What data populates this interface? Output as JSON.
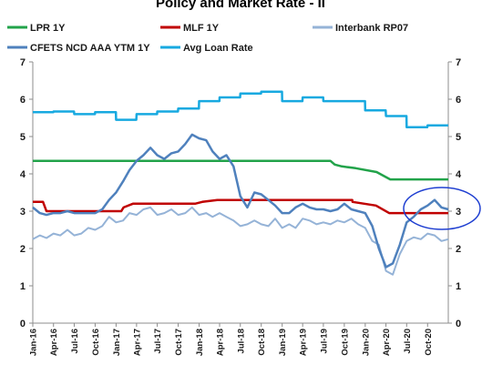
{
  "chart_data": {
    "type": "line",
    "title": "Policy and Market Rate - II",
    "ylim": [
      0,
      7
    ],
    "yticks": [
      0,
      1,
      2,
      3,
      4,
      5,
      6,
      7
    ],
    "x_tick_labels": [
      "Jan-16",
      "Apr-16",
      "Jul-16",
      "Oct-16",
      "Jan-17",
      "Apr-17",
      "Jul-17",
      "Oct-17",
      "Jan-18",
      "Apr-18",
      "Jul-18",
      "Oct-18",
      "Jan-19",
      "Apr-19",
      "Jul-19",
      "Oct-19",
      "Jan-20",
      "Apr-20",
      "Jul-20",
      "Oct-20"
    ],
    "legend_position": "top",
    "grid": false,
    "annotation": "blue ellipse circling the latest values (Oct-20 onward)",
    "series": [
      {
        "name": "LPR 1Y",
        "color": "#22a34a",
        "width": 2.5,
        "points": [
          [
            "2016-01-01",
            4.35
          ],
          [
            "2019-08-01",
            4.35
          ],
          [
            "2019-08-20",
            4.25
          ],
          [
            "2019-09-20",
            4.2
          ],
          [
            "2019-11-20",
            4.15
          ],
          [
            "2020-02-20",
            4.05
          ],
          [
            "2020-04-20",
            3.85
          ],
          [
            "2020-12-31",
            3.85
          ]
        ]
      },
      {
        "name": "MLF 1Y",
        "color": "#c00000",
        "width": 2.5,
        "points": [
          [
            "2016-01-01",
            3.25
          ],
          [
            "2016-02-15",
            3.25
          ],
          [
            "2016-03-01",
            3.0
          ],
          [
            "2017-01-24",
            3.0
          ],
          [
            "2017-02-03",
            3.1
          ],
          [
            "2017-03-16",
            3.2
          ],
          [
            "2017-12-14",
            3.2
          ],
          [
            "2018-01-15",
            3.25
          ],
          [
            "2018-03-22",
            3.3
          ],
          [
            "2019-11-05",
            3.3
          ],
          [
            "2019-11-06",
            3.25
          ],
          [
            "2020-02-17",
            3.15
          ],
          [
            "2020-04-15",
            2.95
          ],
          [
            "2020-12-31",
            2.95
          ]
        ]
      },
      {
        "name": "Interbank RP07",
        "color": "#95b3d7",
        "width": 2,
        "points": [
          [
            "2016-01-01",
            2.25
          ],
          [
            "2016-02-01",
            2.35
          ],
          [
            "2016-03-01",
            2.28
          ],
          [
            "2016-04-01",
            2.4
          ],
          [
            "2016-05-01",
            2.35
          ],
          [
            "2016-06-01",
            2.5
          ],
          [
            "2016-07-01",
            2.35
          ],
          [
            "2016-08-01",
            2.4
          ],
          [
            "2016-09-01",
            2.55
          ],
          [
            "2016-10-01",
            2.5
          ],
          [
            "2016-11-01",
            2.6
          ],
          [
            "2016-12-01",
            2.85
          ],
          [
            "2017-01-01",
            2.7
          ],
          [
            "2017-02-01",
            2.75
          ],
          [
            "2017-03-01",
            2.95
          ],
          [
            "2017-04-01",
            2.9
          ],
          [
            "2017-05-01",
            3.05
          ],
          [
            "2017-06-01",
            3.1
          ],
          [
            "2017-07-01",
            2.9
          ],
          [
            "2017-08-01",
            2.95
          ],
          [
            "2017-09-01",
            3.05
          ],
          [
            "2017-10-01",
            2.9
          ],
          [
            "2017-11-01",
            2.95
          ],
          [
            "2017-12-01",
            3.1
          ],
          [
            "2018-01-01",
            2.9
          ],
          [
            "2018-02-01",
            2.95
          ],
          [
            "2018-03-01",
            2.85
          ],
          [
            "2018-04-01",
            2.95
          ],
          [
            "2018-05-01",
            2.85
          ],
          [
            "2018-06-01",
            2.75
          ],
          [
            "2018-07-01",
            2.6
          ],
          [
            "2018-08-01",
            2.65
          ],
          [
            "2018-09-01",
            2.75
          ],
          [
            "2018-10-01",
            2.65
          ],
          [
            "2018-11-01",
            2.6
          ],
          [
            "2018-12-01",
            2.8
          ],
          [
            "2019-01-01",
            2.55
          ],
          [
            "2019-02-01",
            2.65
          ],
          [
            "2019-03-01",
            2.55
          ],
          [
            "2019-04-01",
            2.8
          ],
          [
            "2019-05-01",
            2.75
          ],
          [
            "2019-06-01",
            2.65
          ],
          [
            "2019-07-01",
            2.7
          ],
          [
            "2019-08-01",
            2.65
          ],
          [
            "2019-09-01",
            2.75
          ],
          [
            "2019-10-01",
            2.7
          ],
          [
            "2019-11-01",
            2.8
          ],
          [
            "2019-12-01",
            2.65
          ],
          [
            "2020-01-01",
            2.55
          ],
          [
            "2020-02-01",
            2.2
          ],
          [
            "2020-03-01",
            2.1
          ],
          [
            "2020-04-01",
            1.4
          ],
          [
            "2020-05-01",
            1.3
          ],
          [
            "2020-06-01",
            1.85
          ],
          [
            "2020-07-01",
            2.2
          ],
          [
            "2020-08-01",
            2.3
          ],
          [
            "2020-09-01",
            2.25
          ],
          [
            "2020-10-01",
            2.4
          ],
          [
            "2020-11-01",
            2.35
          ],
          [
            "2020-12-01",
            2.2
          ],
          [
            "2020-12-31",
            2.25
          ]
        ]
      },
      {
        "name": "CFETS NCD AAA YTM 1Y",
        "color": "#4f81bd",
        "width": 2.5,
        "points": [
          [
            "2016-01-01",
            3.1
          ],
          [
            "2016-02-01",
            2.95
          ],
          [
            "2016-03-01",
            2.9
          ],
          [
            "2016-04-01",
            2.95
          ],
          [
            "2016-05-01",
            2.95
          ],
          [
            "2016-06-01",
            3.0
          ],
          [
            "2016-07-01",
            2.95
          ],
          [
            "2016-08-01",
            2.95
          ],
          [
            "2016-09-01",
            2.95
          ],
          [
            "2016-10-01",
            2.95
          ],
          [
            "2016-11-01",
            3.05
          ],
          [
            "2016-12-01",
            3.3
          ],
          [
            "2017-01-01",
            3.5
          ],
          [
            "2017-02-01",
            3.8
          ],
          [
            "2017-03-01",
            4.1
          ],
          [
            "2017-04-01",
            4.35
          ],
          [
            "2017-05-01",
            4.5
          ],
          [
            "2017-06-01",
            4.7
          ],
          [
            "2017-07-01",
            4.5
          ],
          [
            "2017-08-01",
            4.4
          ],
          [
            "2017-09-01",
            4.55
          ],
          [
            "2017-10-01",
            4.6
          ],
          [
            "2017-11-01",
            4.8
          ],
          [
            "2017-12-01",
            5.05
          ],
          [
            "2018-01-01",
            4.95
          ],
          [
            "2018-02-01",
            4.9
          ],
          [
            "2018-03-01",
            4.6
          ],
          [
            "2018-04-01",
            4.4
          ],
          [
            "2018-05-01",
            4.5
          ],
          [
            "2018-06-01",
            4.2
          ],
          [
            "2018-07-01",
            3.4
          ],
          [
            "2018-08-01",
            3.1
          ],
          [
            "2018-09-01",
            3.5
          ],
          [
            "2018-10-01",
            3.45
          ],
          [
            "2018-11-01",
            3.3
          ],
          [
            "2018-12-01",
            3.15
          ],
          [
            "2019-01-01",
            2.95
          ],
          [
            "2019-02-01",
            2.95
          ],
          [
            "2019-03-01",
            3.1
          ],
          [
            "2019-04-01",
            3.2
          ],
          [
            "2019-05-01",
            3.1
          ],
          [
            "2019-06-01",
            3.05
          ],
          [
            "2019-07-01",
            3.05
          ],
          [
            "2019-08-01",
            3.0
          ],
          [
            "2019-09-01",
            3.05
          ],
          [
            "2019-10-01",
            3.2
          ],
          [
            "2019-11-01",
            3.05
          ],
          [
            "2019-12-01",
            3.0
          ],
          [
            "2020-01-01",
            2.95
          ],
          [
            "2020-02-01",
            2.6
          ],
          [
            "2020-03-01",
            2.0
          ],
          [
            "2020-04-01",
            1.5
          ],
          [
            "2020-05-01",
            1.6
          ],
          [
            "2020-06-01",
            2.1
          ],
          [
            "2020-07-01",
            2.7
          ],
          [
            "2020-08-01",
            2.85
          ],
          [
            "2020-09-01",
            3.05
          ],
          [
            "2020-10-01",
            3.15
          ],
          [
            "2020-11-01",
            3.3
          ],
          [
            "2020-12-01",
            3.1
          ],
          [
            "2020-12-31",
            3.05
          ]
        ]
      },
      {
        "name": "Avg Loan Rate",
        "color": "#17a9e0",
        "width": 2.5,
        "points": [
          [
            "2016-01-01",
            5.65
          ],
          [
            "2016-03-31",
            5.65
          ],
          [
            "2016-04-01",
            5.67
          ],
          [
            "2016-06-30",
            5.67
          ],
          [
            "2016-07-01",
            5.6
          ],
          [
            "2016-09-30",
            5.6
          ],
          [
            "2016-10-01",
            5.65
          ],
          [
            "2016-12-31",
            5.65
          ],
          [
            "2017-01-01",
            5.45
          ],
          [
            "2017-03-31",
            5.45
          ],
          [
            "2017-04-01",
            5.6
          ],
          [
            "2017-06-30",
            5.6
          ],
          [
            "2017-07-01",
            5.67
          ],
          [
            "2017-09-30",
            5.67
          ],
          [
            "2017-10-01",
            5.75
          ],
          [
            "2017-12-31",
            5.75
          ],
          [
            "2018-01-01",
            5.95
          ],
          [
            "2018-03-31",
            5.95
          ],
          [
            "2018-04-01",
            6.05
          ],
          [
            "2018-06-30",
            6.05
          ],
          [
            "2018-07-01",
            6.15
          ],
          [
            "2018-09-30",
            6.15
          ],
          [
            "2018-10-01",
            6.2
          ],
          [
            "2018-12-31",
            6.2
          ],
          [
            "2019-01-01",
            5.95
          ],
          [
            "2019-03-31",
            5.95
          ],
          [
            "2019-04-01",
            6.05
          ],
          [
            "2019-06-30",
            6.05
          ],
          [
            "2019-07-01",
            5.95
          ],
          [
            "2019-09-30",
            5.95
          ],
          [
            "2019-10-01",
            5.95
          ],
          [
            "2019-12-31",
            5.95
          ],
          [
            "2020-01-01",
            5.7
          ],
          [
            "2020-03-31",
            5.7
          ],
          [
            "2020-04-01",
            5.55
          ],
          [
            "2020-06-30",
            5.55
          ],
          [
            "2020-07-01",
            5.25
          ],
          [
            "2020-09-30",
            5.25
          ],
          [
            "2020-10-01",
            5.3
          ],
          [
            "2020-12-31",
            5.3
          ]
        ]
      }
    ]
  }
}
